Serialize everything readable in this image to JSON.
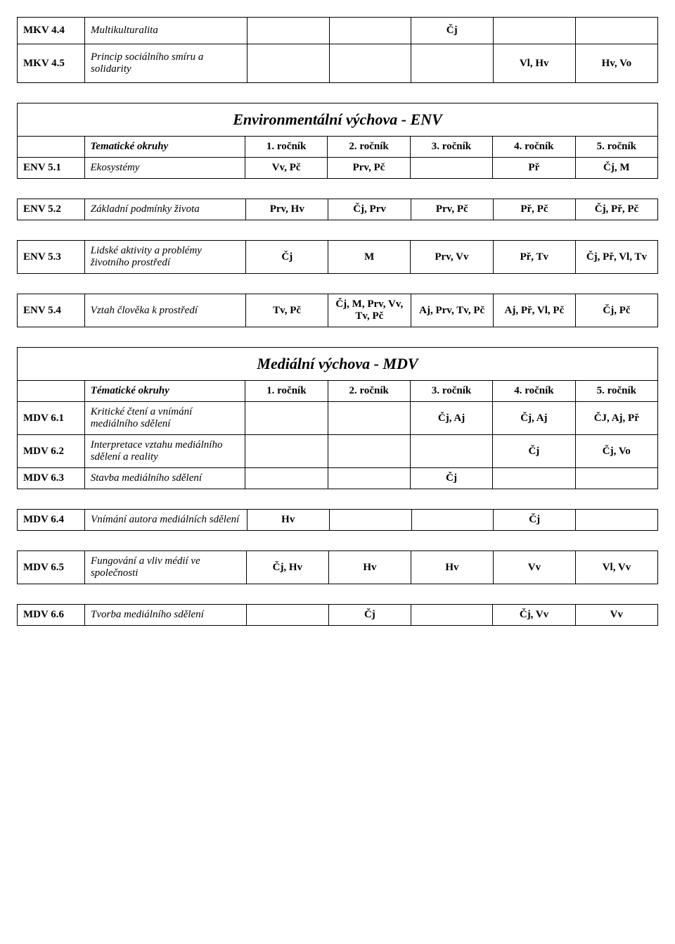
{
  "top": {
    "rows": [
      {
        "code": "MKV 4.4",
        "label": "Multikulturalita",
        "c1": "",
        "c2": "",
        "c3": "Čj",
        "c4": "",
        "c5": ""
      },
      {
        "code": "MKV 4.5",
        "label": "Princip sociálního smíru a solidarity",
        "c1": "",
        "c2": "",
        "c3": "",
        "c4": "Vl, Hv",
        "c5": "Hv, Vo"
      }
    ]
  },
  "env": {
    "title": "Environmentální výchova - ENV",
    "header": {
      "okruhy": "Tematické okruhy",
      "c1": "1. ročník",
      "c2": "2. ročník",
      "c3": "3. ročník",
      "c4": "4. ročník",
      "c5": "5. ročník"
    },
    "rows": [
      {
        "code": "ENV 5.1",
        "label": "Ekosystémy",
        "c1": "Vv, Pč",
        "c2": "Prv, Pč",
        "c3": "",
        "c4": "Př",
        "c5": "Čj, M"
      },
      {
        "code": "ENV 5.2",
        "label": "Základní podmínky života",
        "c1": "Prv, Hv",
        "c2": "Čj, Prv",
        "c3": "Prv, Pč",
        "c4": "Př, Pč",
        "c5": "Čj, Př, Pč"
      },
      {
        "code": "ENV 5.3",
        "label": "Lidské aktivity a problémy životního prostředí",
        "c1": "Čj",
        "c2": "M",
        "c3": "Prv, Vv",
        "c4": "Př, Tv",
        "c5": "Čj, Př, Vl, Tv"
      },
      {
        "code": "ENV 5.4",
        "label": "Vztah člověka k prostředí",
        "c1": "Tv, Pč",
        "c2": "Čj, M, Prv, Vv, Tv, Pč",
        "c3": "Aj, Prv, Tv, Pč",
        "c4": "Aj, Př, Vl, Pč",
        "c5": "Čj, Pč"
      }
    ]
  },
  "mdv": {
    "title": "Mediální výchova - MDV",
    "header": {
      "okruhy": "Tématické okruhy",
      "c1": "1. ročník",
      "c2": "2. ročník",
      "c3": "3. ročník",
      "c4": "4. ročník",
      "c5": "5. ročník"
    },
    "rows": [
      {
        "code": "MDV 6.1",
        "label": "Kritické čtení a vnímání mediálního sdělení",
        "c1": "",
        "c2": "",
        "c3": "Čj, Aj",
        "c4": "Čj, Aj",
        "c5": "ČJ, Aj, Př"
      },
      {
        "code": "MDV 6.2",
        "label": "Interpretace vztahu mediálního sdělení a reality",
        "c1": "",
        "c2": "",
        "c3": "",
        "c4": "Čj",
        "c5": "Čj, Vo"
      },
      {
        "code": "MDV 6.3",
        "label": "Stavba mediálního sdělení",
        "c1": "",
        "c2": "",
        "c3": "Čj",
        "c4": "",
        "c5": ""
      },
      {
        "code": "MDV 6.4",
        "label": "Vnímání autora mediálních sdělení",
        "c1": "Hv",
        "c2": "",
        "c3": "",
        "c4": "Čj",
        "c5": ""
      },
      {
        "code": "MDV 6.5",
        "label": "Fungování a vliv médií ve společnosti",
        "c1": "Čj, Hv",
        "c2": "Hv",
        "c3": "Hv",
        "c4": "Vv",
        "c5": "Vl, Vv"
      },
      {
        "code": "MDV 6.6",
        "label": "Tvorba mediálního sdělení",
        "c1": "",
        "c2": "Čj",
        "c3": "",
        "c4": "Čj, Vv",
        "c5": "Vv"
      }
    ]
  }
}
